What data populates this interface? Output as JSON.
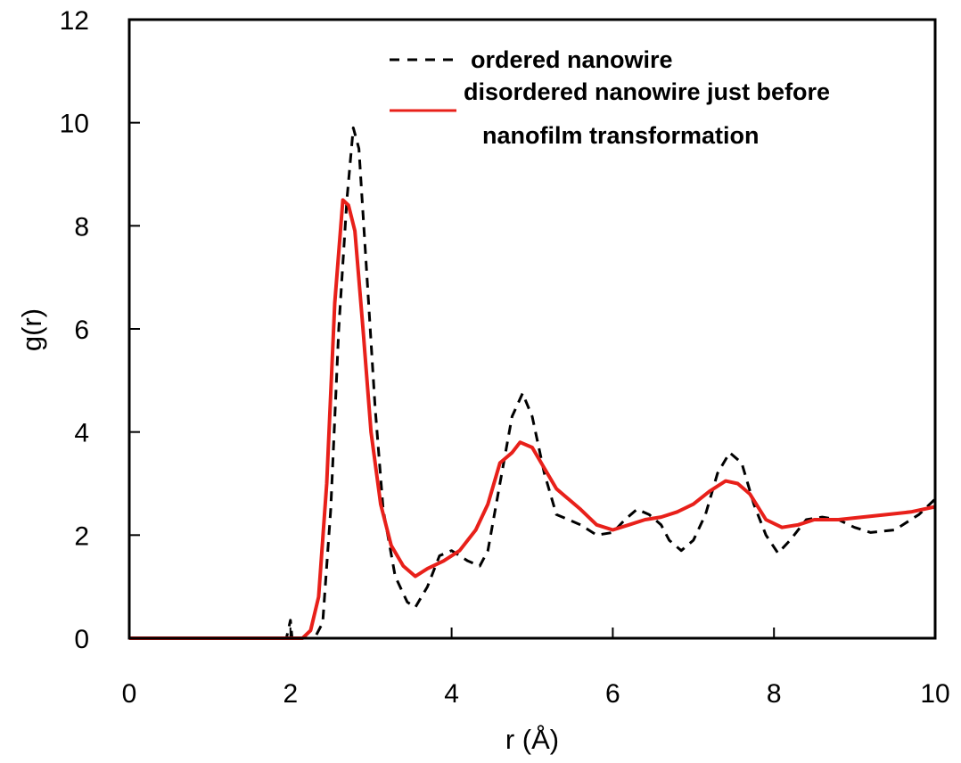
{
  "chart_data": {
    "type": "line",
    "xlabel": "r (Å)",
    "ylabel": "g(r)",
    "xlim": [
      0,
      10
    ],
    "ylim": [
      0,
      12
    ],
    "xticks": [
      "0",
      "2",
      "4",
      "6",
      "8",
      "10"
    ],
    "yticks": [
      "0",
      "2",
      "4",
      "6",
      "8",
      "10",
      "12"
    ],
    "grid": false,
    "legend_position": "top-right",
    "legend": {
      "entry1": "ordered nanowire",
      "entry2_line1": "disordered nanowire just before",
      "entry2_line2": "nanofilm transformation"
    },
    "series": [
      {
        "name": "ordered nanowire",
        "color": "#000000",
        "style": "dashed",
        "points": [
          [
            0,
            0
          ],
          [
            1,
            0
          ],
          [
            1.95,
            0
          ],
          [
            2.0,
            0.35
          ],
          [
            2.02,
            0
          ],
          [
            2.3,
            0
          ],
          [
            2.4,
            0.3
          ],
          [
            2.5,
            2.5
          ],
          [
            2.6,
            6.0
          ],
          [
            2.7,
            8.5
          ],
          [
            2.78,
            9.9
          ],
          [
            2.85,
            9.5
          ],
          [
            2.95,
            7.0
          ],
          [
            3.05,
            4.5
          ],
          [
            3.15,
            2.5
          ],
          [
            3.3,
            1.2
          ],
          [
            3.45,
            0.7
          ],
          [
            3.55,
            0.6
          ],
          [
            3.7,
            1.0
          ],
          [
            3.85,
            1.6
          ],
          [
            4.0,
            1.7
          ],
          [
            4.1,
            1.6
          ],
          [
            4.2,
            1.5
          ],
          [
            4.35,
            1.4
          ],
          [
            4.45,
            1.7
          ],
          [
            4.6,
            3.0
          ],
          [
            4.75,
            4.3
          ],
          [
            4.88,
            4.75
          ],
          [
            5.0,
            4.3
          ],
          [
            5.15,
            3.2
          ],
          [
            5.3,
            2.4
          ],
          [
            5.45,
            2.3
          ],
          [
            5.6,
            2.2
          ],
          [
            5.8,
            2.0
          ],
          [
            6.0,
            2.05
          ],
          [
            6.15,
            2.3
          ],
          [
            6.3,
            2.5
          ],
          [
            6.45,
            2.4
          ],
          [
            6.6,
            2.2
          ],
          [
            6.7,
            1.9
          ],
          [
            6.85,
            1.7
          ],
          [
            7.0,
            1.9
          ],
          [
            7.15,
            2.4
          ],
          [
            7.3,
            3.2
          ],
          [
            7.45,
            3.6
          ],
          [
            7.6,
            3.4
          ],
          [
            7.75,
            2.6
          ],
          [
            7.9,
            2.0
          ],
          [
            8.05,
            1.65
          ],
          [
            8.2,
            1.9
          ],
          [
            8.4,
            2.3
          ],
          [
            8.6,
            2.35
          ],
          [
            8.8,
            2.3
          ],
          [
            9.0,
            2.15
          ],
          [
            9.2,
            2.05
          ],
          [
            9.5,
            2.1
          ],
          [
            9.8,
            2.4
          ],
          [
            10.0,
            2.7
          ]
        ]
      },
      {
        "name": "disordered nanowire just before nanofilm transformation",
        "color": "#e8201a",
        "style": "solid",
        "points": [
          [
            0,
            0
          ],
          [
            2.15,
            0
          ],
          [
            2.25,
            0.15
          ],
          [
            2.35,
            0.8
          ],
          [
            2.45,
            3.0
          ],
          [
            2.55,
            6.5
          ],
          [
            2.65,
            8.5
          ],
          [
            2.72,
            8.4
          ],
          [
            2.8,
            7.9
          ],
          [
            2.9,
            6.0
          ],
          [
            3.0,
            4.0
          ],
          [
            3.12,
            2.6
          ],
          [
            3.25,
            1.8
          ],
          [
            3.4,
            1.4
          ],
          [
            3.55,
            1.2
          ],
          [
            3.7,
            1.35
          ],
          [
            3.9,
            1.5
          ],
          [
            4.1,
            1.7
          ],
          [
            4.3,
            2.1
          ],
          [
            4.45,
            2.6
          ],
          [
            4.6,
            3.4
          ],
          [
            4.75,
            3.6
          ],
          [
            4.85,
            3.8
          ],
          [
            5.0,
            3.7
          ],
          [
            5.15,
            3.3
          ],
          [
            5.3,
            2.9
          ],
          [
            5.45,
            2.7
          ],
          [
            5.6,
            2.5
          ],
          [
            5.8,
            2.2
          ],
          [
            6.0,
            2.1
          ],
          [
            6.2,
            2.2
          ],
          [
            6.4,
            2.3
          ],
          [
            6.6,
            2.35
          ],
          [
            6.8,
            2.45
          ],
          [
            7.0,
            2.6
          ],
          [
            7.2,
            2.85
          ],
          [
            7.4,
            3.05
          ],
          [
            7.55,
            3.0
          ],
          [
            7.7,
            2.8
          ],
          [
            7.9,
            2.3
          ],
          [
            8.1,
            2.15
          ],
          [
            8.3,
            2.2
          ],
          [
            8.5,
            2.3
          ],
          [
            8.8,
            2.3
          ],
          [
            9.1,
            2.35
          ],
          [
            9.4,
            2.4
          ],
          [
            9.7,
            2.45
          ],
          [
            10.0,
            2.55
          ]
        ]
      }
    ]
  }
}
